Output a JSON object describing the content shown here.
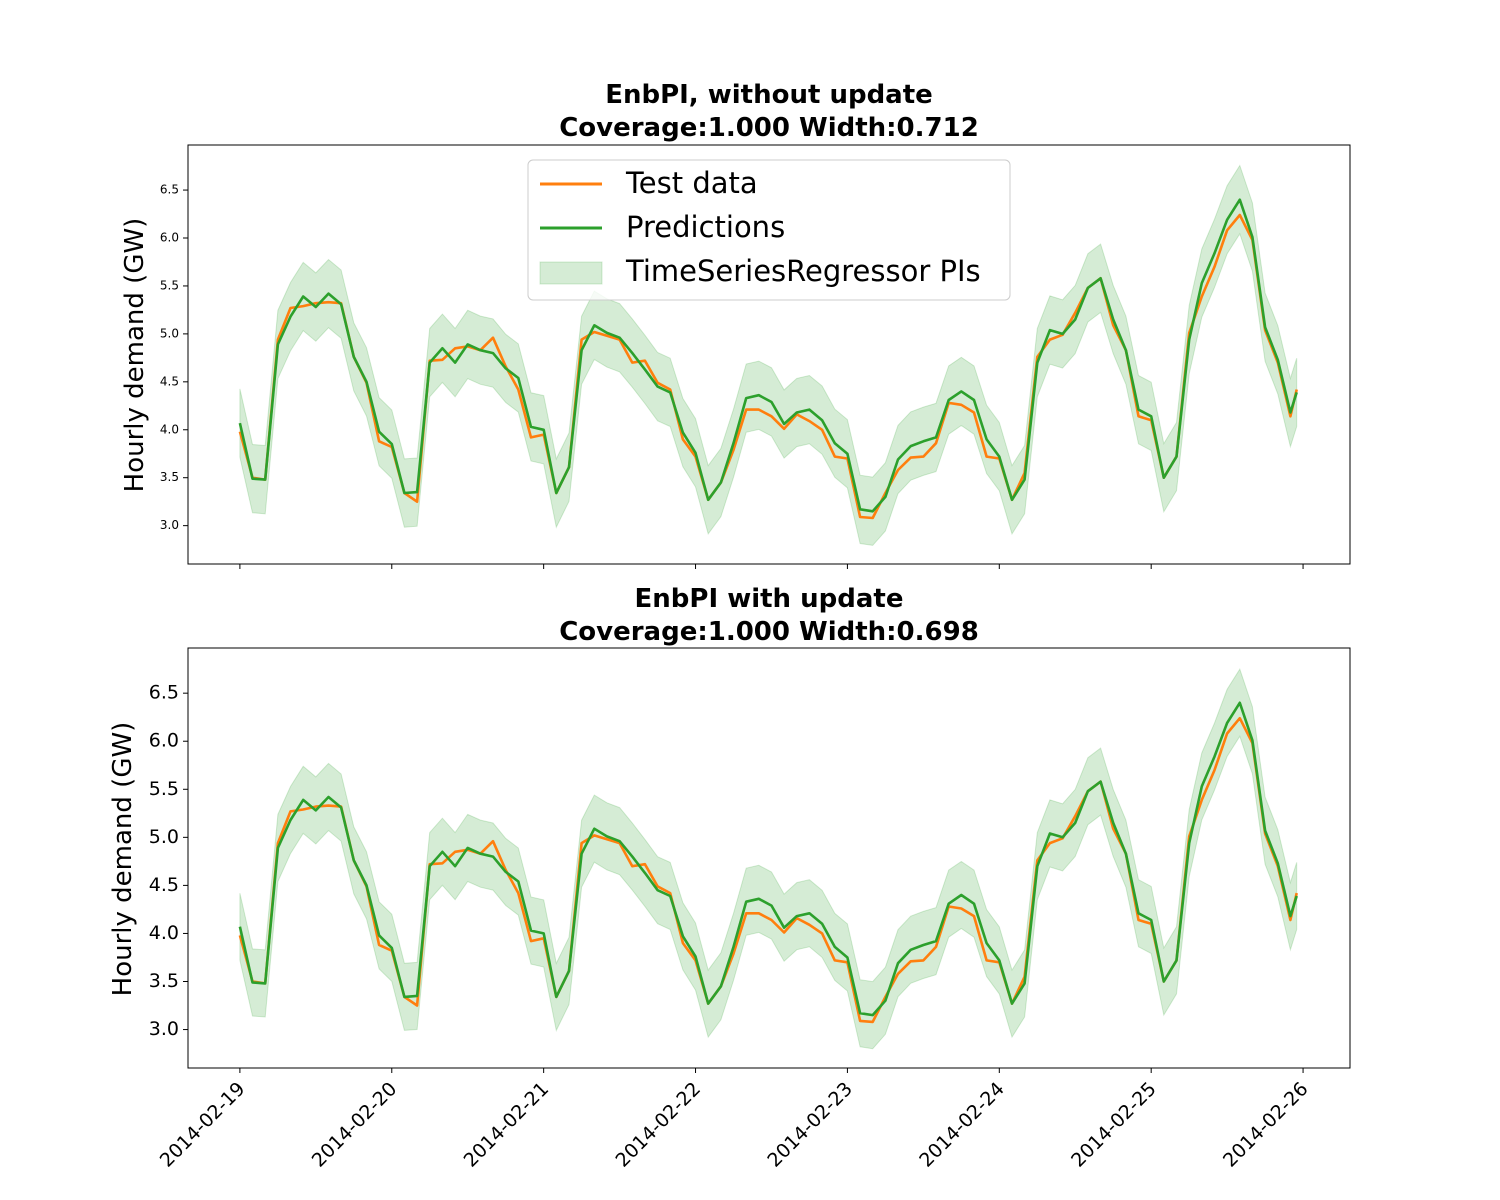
{
  "colors": {
    "test": "#ff7f0e",
    "pred": "#2ca02c",
    "band": "#2ca02c"
  },
  "legend": {
    "placement": "upper-center",
    "entries": [
      "Test data",
      "Predictions",
      "TimeSeriesRegressor PIs"
    ]
  },
  "x_tick_labels": [
    "2014-02-19",
    "2014-02-20",
    "2014-02-21",
    "2014-02-22",
    "2014-02-23",
    "2014-02-24",
    "2014-02-25",
    "2014-02-26"
  ],
  "chart_data": [
    {
      "type": "line",
      "title_line1": "EnbPI, without update",
      "title_line2": "Coverage:1.000  Width:0.712",
      "ylabel": "Hourly demand (GW)",
      "xlabel": "",
      "pi_width": 0.712,
      "coverage": 1.0,
      "ylim": [
        2.6,
        6.97
      ],
      "xlim": [
        "2014-02-18 15:48",
        "2014-02-26 07:25"
      ],
      "y_ticks": [
        "3.0",
        "3.5",
        "4.0",
        "4.5",
        "5.0",
        "5.5",
        "6.0",
        "6.5"
      ],
      "show_x_tick_labels": false,
      "grid": false,
      "series_ref": "series"
    },
    {
      "type": "line",
      "title_line1": "EnbPI with update",
      "title_line2": "Coverage:1.000  Width:0.698",
      "ylabel": "Hourly demand (GW)",
      "xlabel": "",
      "pi_width": 0.698,
      "coverage": 1.0,
      "ylim": [
        2.6,
        6.97
      ],
      "xlim": [
        "2014-02-18 15:48",
        "2014-02-26 07:25"
      ],
      "y_ticks": [
        "3.0",
        "3.5",
        "4.0",
        "4.5",
        "5.0",
        "5.5",
        "6.0",
        "6.5"
      ],
      "show_x_tick_labels": true,
      "grid": false,
      "series_ref": "series"
    }
  ],
  "series": {
    "x": [
      "2014-02-19 00:00",
      "2014-02-19 02:00",
      "2014-02-19 04:00",
      "2014-02-19 06:00",
      "2014-02-19 08:00",
      "2014-02-19 10:00",
      "2014-02-19 12:00",
      "2014-02-19 14:00",
      "2014-02-19 16:00",
      "2014-02-19 18:00",
      "2014-02-19 20:00",
      "2014-02-19 22:00",
      "2014-02-20 00:00",
      "2014-02-20 02:00",
      "2014-02-20 04:00",
      "2014-02-20 06:00",
      "2014-02-20 08:00",
      "2014-02-20 10:00",
      "2014-02-20 12:00",
      "2014-02-20 14:00",
      "2014-02-20 16:00",
      "2014-02-20 18:00",
      "2014-02-20 20:00",
      "2014-02-20 22:00",
      "2014-02-21 00:00",
      "2014-02-21 02:00",
      "2014-02-21 04:00",
      "2014-02-21 06:00",
      "2014-02-21 08:00",
      "2014-02-21 10:00",
      "2014-02-21 12:00",
      "2014-02-21 14:00",
      "2014-02-21 16:00",
      "2014-02-21 18:00",
      "2014-02-21 20:00",
      "2014-02-21 22:00",
      "2014-02-22 00:00",
      "2014-02-22 02:00",
      "2014-02-22 04:00",
      "2014-02-22 06:00",
      "2014-02-22 08:00",
      "2014-02-22 10:00",
      "2014-02-22 12:00",
      "2014-02-22 14:00",
      "2014-02-22 16:00",
      "2014-02-22 18:00",
      "2014-02-22 20:00",
      "2014-02-22 22:00",
      "2014-02-23 00:00",
      "2014-02-23 02:00",
      "2014-02-23 04:00",
      "2014-02-23 06:00",
      "2014-02-23 08:00",
      "2014-02-23 10:00",
      "2014-02-23 12:00",
      "2014-02-23 14:00",
      "2014-02-23 16:00",
      "2014-02-23 18:00",
      "2014-02-23 20:00",
      "2014-02-23 22:00",
      "2014-02-24 00:00",
      "2014-02-24 02:00",
      "2014-02-24 04:00",
      "2014-02-24 06:00",
      "2014-02-24 08:00",
      "2014-02-24 10:00",
      "2014-02-24 12:00",
      "2014-02-24 14:00",
      "2014-02-24 16:00",
      "2014-02-24 18:00",
      "2014-02-24 20:00",
      "2014-02-24 22:00",
      "2014-02-25 00:00",
      "2014-02-25 02:00",
      "2014-02-25 04:00",
      "2014-02-25 06:00",
      "2014-02-25 08:00",
      "2014-02-25 10:00",
      "2014-02-25 12:00",
      "2014-02-25 14:00",
      "2014-02-25 16:00",
      "2014-02-25 18:00",
      "2014-02-25 20:00",
      "2014-02-25 22:00",
      "2014-02-25 23:00"
    ],
    "test": [
      3.98,
      3.5,
      3.48,
      4.94,
      5.27,
      5.29,
      5.32,
      5.33,
      5.32,
      4.76,
      4.49,
      3.88,
      3.82,
      3.34,
      3.25,
      4.72,
      4.73,
      4.85,
      4.87,
      4.83,
      4.96,
      4.66,
      4.42,
      3.92,
      3.95,
      3.34,
      3.61,
      4.94,
      5.02,
      4.98,
      4.94,
      4.7,
      4.72,
      4.49,
      4.42,
      3.9,
      3.72,
      3.27,
      3.45,
      3.79,
      4.21,
      4.21,
      4.14,
      4.01,
      4.16,
      4.09,
      4.0,
      3.72,
      3.7,
      3.09,
      3.08,
      3.34,
      3.58,
      3.71,
      3.72,
      3.86,
      4.28,
      4.26,
      4.18,
      3.72,
      3.7,
      3.27,
      3.55,
      4.76,
      4.94,
      4.99,
      5.22,
      5.48,
      5.58,
      5.09,
      4.83,
      4.14,
      4.1,
      3.5,
      3.72,
      5.01,
      5.39,
      5.7,
      6.08,
      6.24,
      5.98,
      5.04,
      4.7,
      4.14,
      4.42
    ],
    "predictions": [
      4.07,
      3.49,
      3.48,
      4.89,
      5.18,
      5.39,
      5.28,
      5.42,
      5.31,
      4.76,
      4.5,
      3.98,
      3.85,
      3.34,
      3.35,
      4.7,
      4.85,
      4.7,
      4.89,
      4.83,
      4.8,
      4.64,
      4.54,
      4.03,
      4.0,
      3.34,
      3.61,
      4.83,
      5.09,
      5.01,
      4.96,
      4.8,
      4.63,
      4.45,
      4.39,
      3.97,
      3.76,
      3.27,
      3.45,
      3.86,
      4.33,
      4.36,
      4.29,
      4.06,
      4.18,
      4.21,
      4.1,
      3.86,
      3.75,
      3.17,
      3.15,
      3.3,
      3.69,
      3.83,
      3.88,
      3.92,
      4.31,
      4.4,
      4.31,
      3.9,
      3.72,
      3.27,
      3.48,
      4.7,
      5.04,
      5.0,
      5.15,
      5.48,
      5.58,
      5.15,
      4.83,
      4.21,
      4.14,
      3.5,
      3.72,
      4.94,
      5.53,
      5.84,
      6.19,
      6.4,
      6.01,
      5.07,
      4.73,
      4.18,
      4.39
    ]
  }
}
